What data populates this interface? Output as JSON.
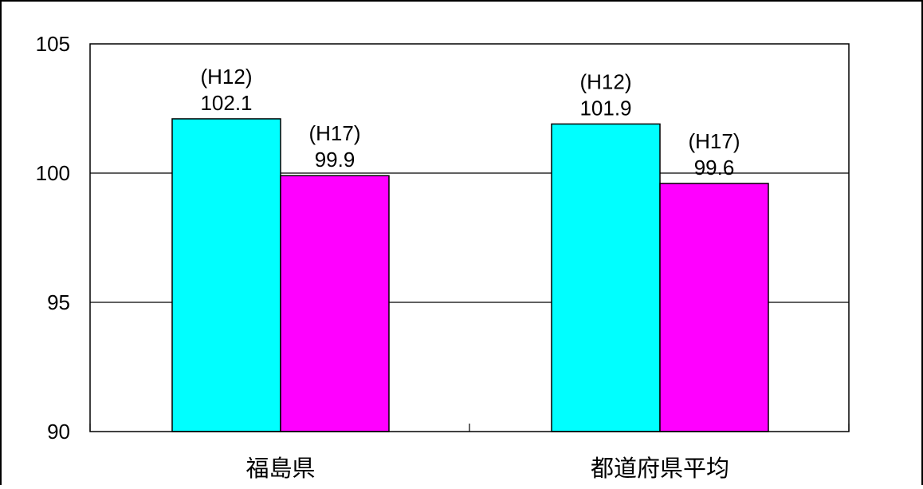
{
  "chart_data": {
    "type": "bar",
    "categories": [
      "福島県",
      "都道府県平均"
    ],
    "series": [
      {
        "label": "(H12)",
        "values": [
          102.1,
          101.9
        ]
      },
      {
        "label": "(H17)",
        "values": [
          99.9,
          99.6
        ]
      }
    ],
    "ylim": [
      90,
      105
    ],
    "yticks": [
      90,
      95,
      100,
      105
    ],
    "grid": true,
    "colors": {
      "series": [
        "#00ffff",
        "#ff00ff"
      ],
      "grid": "#000000",
      "border": "#000000"
    }
  }
}
